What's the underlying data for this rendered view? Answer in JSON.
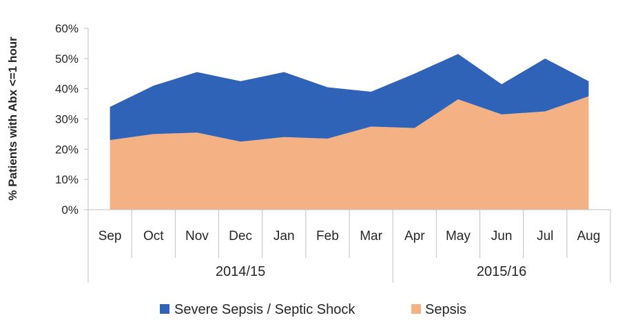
{
  "chart_data": {
    "type": "area",
    "stacked": true,
    "ylabel": "% Patients with Abx <=1 hour",
    "ylim": [
      0,
      60
    ],
    "yticks": [
      "0%",
      "10%",
      "20%",
      "30%",
      "40%",
      "50%",
      "60%"
    ],
    "categories": [
      "Sep",
      "Oct",
      "Nov",
      "Dec",
      "Jan",
      "Feb",
      "Mar",
      "Apr",
      "May",
      "Jun",
      "Jul",
      "Aug"
    ],
    "groups": [
      {
        "label": "2014/15",
        "count": 7
      },
      {
        "label": "2015/16",
        "count": 5
      }
    ],
    "series": [
      {
        "name": "Sepsis",
        "color": "#f4b183",
        "values": [
          23,
          25,
          25.5,
          22.5,
          24,
          23.5,
          27.5,
          27,
          36.5,
          31.5,
          32.5,
          37.5
        ]
      },
      {
        "name": "Severe Sepsis / Septic Shock",
        "color": "#2e63b8",
        "values": [
          11,
          16,
          20,
          20,
          21.5,
          17,
          11.5,
          18,
          15,
          10,
          17.5,
          5
        ]
      }
    ],
    "legend": {
      "position": "bottom",
      "order": [
        "Severe Sepsis / Septic Shock",
        "Sepsis"
      ]
    },
    "grid": false
  }
}
